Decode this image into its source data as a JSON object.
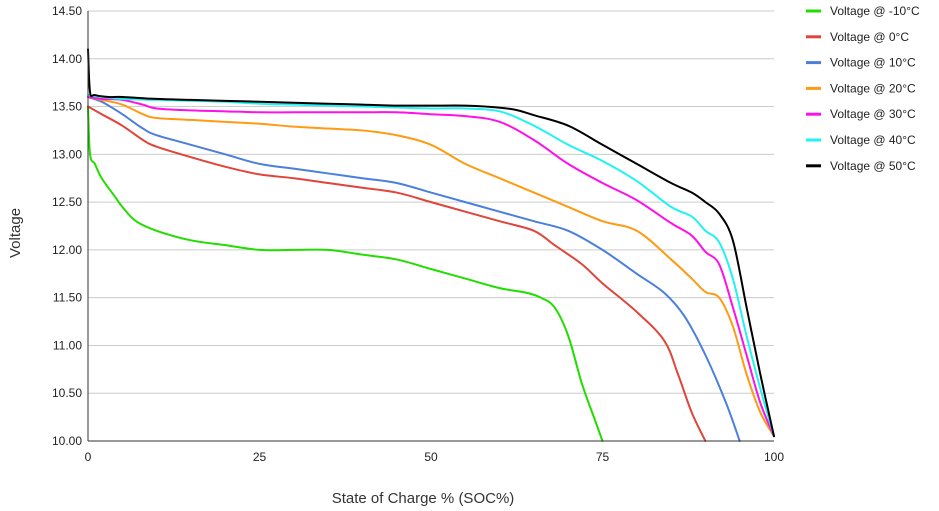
{
  "chart_data": {
    "type": "line",
    "title": "",
    "xlabel": "State of Charge % (SOC%)",
    "ylabel": "Voltage",
    "xlim": [
      0,
      100
    ],
    "ylim": [
      10.0,
      14.5
    ],
    "x_ticks": [
      "0",
      "25",
      "50",
      "75",
      "100"
    ],
    "y_ticks": [
      "10.00",
      "10.50",
      "11.00",
      "11.50",
      "12.00",
      "12.50",
      "13.00",
      "13.50",
      "14.00",
      "14.50"
    ],
    "grid": true,
    "legend_position": "right",
    "series": [
      {
        "name": "Voltage @ -10°C",
        "color": "#22dd00",
        "points": [
          [
            0,
            13.5
          ],
          [
            0.3,
            13.0
          ],
          [
            1,
            12.9
          ],
          [
            2,
            12.75
          ],
          [
            4,
            12.55
          ],
          [
            5,
            12.45
          ],
          [
            7,
            12.3
          ],
          [
            10,
            12.2
          ],
          [
            15,
            12.1
          ],
          [
            20,
            12.05
          ],
          [
            25,
            12.0
          ],
          [
            30,
            12.0
          ],
          [
            35,
            12.0
          ],
          [
            40,
            11.95
          ],
          [
            45,
            11.9
          ],
          [
            50,
            11.8
          ],
          [
            55,
            11.7
          ],
          [
            60,
            11.6
          ],
          [
            64,
            11.55
          ],
          [
            66,
            11.5
          ],
          [
            68,
            11.4
          ],
          [
            70,
            11.1
          ],
          [
            72,
            10.6
          ],
          [
            74,
            10.2
          ],
          [
            75,
            10.0
          ]
        ]
      },
      {
        "name": "Voltage @ 0°C",
        "color": "#e0443a",
        "points": [
          [
            0,
            13.5
          ],
          [
            2,
            13.42
          ],
          [
            5,
            13.3
          ],
          [
            8,
            13.15
          ],
          [
            10,
            13.08
          ],
          [
            15,
            12.97
          ],
          [
            20,
            12.87
          ],
          [
            25,
            12.79
          ],
          [
            30,
            12.75
          ],
          [
            35,
            12.7
          ],
          [
            40,
            12.65
          ],
          [
            45,
            12.6
          ],
          [
            50,
            12.5
          ],
          [
            55,
            12.4
          ],
          [
            60,
            12.3
          ],
          [
            65,
            12.2
          ],
          [
            68,
            12.05
          ],
          [
            72,
            11.85
          ],
          [
            75,
            11.65
          ],
          [
            80,
            11.35
          ],
          [
            84,
            11.05
          ],
          [
            86,
            10.7
          ],
          [
            88,
            10.3
          ],
          [
            90,
            10.0
          ]
        ]
      },
      {
        "name": "Voltage @ 10°C",
        "color": "#4a7fdd",
        "points": [
          [
            0,
            13.6
          ],
          [
            2,
            13.55
          ],
          [
            5,
            13.42
          ],
          [
            8,
            13.27
          ],
          [
            10,
            13.2
          ],
          [
            15,
            13.1
          ],
          [
            20,
            13.0
          ],
          [
            25,
            12.9
          ],
          [
            30,
            12.85
          ],
          [
            35,
            12.8
          ],
          [
            40,
            12.75
          ],
          [
            45,
            12.7
          ],
          [
            50,
            12.6
          ],
          [
            55,
            12.5
          ],
          [
            60,
            12.4
          ],
          [
            65,
            12.3
          ],
          [
            70,
            12.2
          ],
          [
            75,
            12.0
          ],
          [
            80,
            11.75
          ],
          [
            84,
            11.55
          ],
          [
            87,
            11.3
          ],
          [
            90,
            10.9
          ],
          [
            93,
            10.4
          ],
          [
            95,
            10.0
          ]
        ]
      },
      {
        "name": "Voltage @ 20°C",
        "color": "#ff9a12",
        "points": [
          [
            0,
            13.6
          ],
          [
            2,
            13.57
          ],
          [
            5,
            13.52
          ],
          [
            8,
            13.42
          ],
          [
            10,
            13.38
          ],
          [
            15,
            13.36
          ],
          [
            20,
            13.34
          ],
          [
            25,
            13.32
          ],
          [
            30,
            13.29
          ],
          [
            35,
            13.27
          ],
          [
            40,
            13.25
          ],
          [
            45,
            13.2
          ],
          [
            50,
            13.1
          ],
          [
            55,
            12.9
          ],
          [
            60,
            12.75
          ],
          [
            65,
            12.6
          ],
          [
            70,
            12.45
          ],
          [
            75,
            12.3
          ],
          [
            80,
            12.2
          ],
          [
            85,
            11.9
          ],
          [
            88,
            11.7
          ],
          [
            90,
            11.56
          ],
          [
            92,
            11.5
          ],
          [
            94,
            11.2
          ],
          [
            96,
            10.7
          ],
          [
            98,
            10.3
          ],
          [
            100,
            10.05
          ]
        ]
      },
      {
        "name": "Voltage @ 30°C",
        "color": "#ff10e8",
        "points": [
          [
            0,
            13.6
          ],
          [
            2,
            13.58
          ],
          [
            5,
            13.57
          ],
          [
            8,
            13.52
          ],
          [
            10,
            13.48
          ],
          [
            15,
            13.46
          ],
          [
            20,
            13.45
          ],
          [
            25,
            13.44
          ],
          [
            30,
            13.44
          ],
          [
            35,
            13.44
          ],
          [
            40,
            13.44
          ],
          [
            45,
            13.44
          ],
          [
            50,
            13.42
          ],
          [
            55,
            13.4
          ],
          [
            60,
            13.34
          ],
          [
            65,
            13.15
          ],
          [
            70,
            12.9
          ],
          [
            75,
            12.7
          ],
          [
            80,
            12.52
          ],
          [
            85,
            12.28
          ],
          [
            88,
            12.15
          ],
          [
            90,
            11.98
          ],
          [
            92,
            11.85
          ],
          [
            94,
            11.4
          ],
          [
            96,
            10.9
          ],
          [
            98,
            10.4
          ],
          [
            100,
            10.05
          ]
        ]
      },
      {
        "name": "Voltage @ 40°C",
        "color": "#22f2f2",
        "points": [
          [
            0,
            13.62
          ],
          [
            2,
            13.6
          ],
          [
            5,
            13.58
          ],
          [
            10,
            13.57
          ],
          [
            15,
            13.56
          ],
          [
            20,
            13.55
          ],
          [
            25,
            13.53
          ],
          [
            30,
            13.52
          ],
          [
            35,
            13.51
          ],
          [
            40,
            13.5
          ],
          [
            45,
            13.49
          ],
          [
            50,
            13.48
          ],
          [
            55,
            13.48
          ],
          [
            60,
            13.45
          ],
          [
            65,
            13.3
          ],
          [
            70,
            13.1
          ],
          [
            75,
            12.93
          ],
          [
            80,
            12.72
          ],
          [
            85,
            12.45
          ],
          [
            88,
            12.35
          ],
          [
            90,
            12.2
          ],
          [
            92,
            12.08
          ],
          [
            94,
            11.7
          ],
          [
            96,
            11.1
          ],
          [
            98,
            10.55
          ],
          [
            100,
            10.05
          ]
        ]
      },
      {
        "name": "Voltage @ 50°C",
        "color": "#000000",
        "points": [
          [
            0,
            14.1
          ],
          [
            0.3,
            13.65
          ],
          [
            1,
            13.62
          ],
          [
            3,
            13.6
          ],
          [
            5,
            13.6
          ],
          [
            10,
            13.58
          ],
          [
            15,
            13.57
          ],
          [
            20,
            13.56
          ],
          [
            25,
            13.55
          ],
          [
            30,
            13.54
          ],
          [
            35,
            13.53
          ],
          [
            40,
            13.52
          ],
          [
            45,
            13.51
          ],
          [
            50,
            13.51
          ],
          [
            55,
            13.51
          ],
          [
            58,
            13.5
          ],
          [
            62,
            13.47
          ],
          [
            65,
            13.41
          ],
          [
            70,
            13.3
          ],
          [
            75,
            13.1
          ],
          [
            80,
            12.9
          ],
          [
            85,
            12.7
          ],
          [
            88,
            12.6
          ],
          [
            90,
            12.5
          ],
          [
            92,
            12.38
          ],
          [
            94,
            12.1
          ],
          [
            96,
            11.4
          ],
          [
            98,
            10.7
          ],
          [
            100,
            10.05
          ]
        ]
      }
    ]
  }
}
